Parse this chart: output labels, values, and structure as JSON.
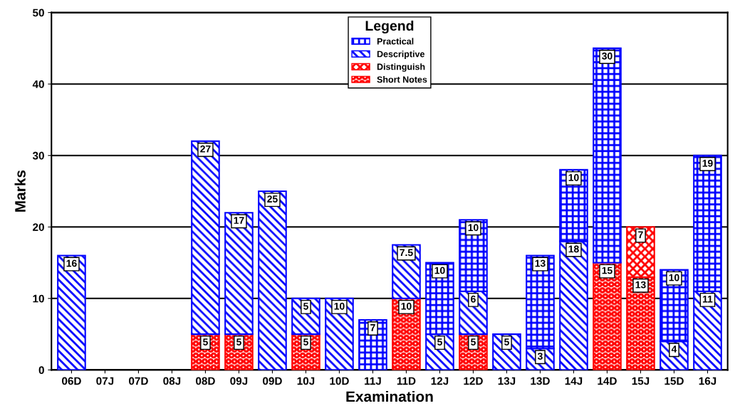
{
  "chart_data": {
    "type": "bar",
    "stacked": true,
    "xlabel": "Examination",
    "ylabel": "Marks",
    "legend_title": "Legend",
    "legend": "top",
    "grid": "y",
    "data_labels": true,
    "categories": [
      "06D",
      "07J",
      "07D",
      "08J",
      "08D",
      "09J",
      "09D",
      "10J",
      "10D",
      "11J",
      "11D",
      "12J",
      "12D",
      "13J",
      "13D",
      "14J",
      "14D",
      "15J",
      "15D",
      "16J"
    ],
    "ylim": [
      0,
      50
    ],
    "yticks": [
      0,
      10,
      20,
      30,
      40,
      50
    ],
    "series": [
      {
        "name": "Short Notes",
        "color": "#ff0000",
        "values": [
          null,
          null,
          null,
          null,
          5,
          5,
          null,
          5,
          null,
          null,
          10,
          null,
          5,
          null,
          null,
          null,
          15,
          13,
          null,
          null
        ]
      },
      {
        "name": "Distinguish",
        "color": "#ff0000",
        "values": [
          null,
          null,
          null,
          null,
          null,
          null,
          null,
          null,
          null,
          null,
          null,
          null,
          null,
          null,
          null,
          null,
          null,
          7,
          null,
          null
        ]
      },
      {
        "name": "Descriptive",
        "color": "#0000ff",
        "values": [
          16,
          null,
          null,
          null,
          27,
          17,
          25,
          5,
          10,
          null,
          7.5,
          5,
          6,
          5,
          3,
          18,
          null,
          null,
          4,
          11
        ]
      },
      {
        "name": "Practical",
        "color": "#0000ff",
        "values": [
          null,
          null,
          null,
          null,
          null,
          null,
          null,
          null,
          null,
          7,
          null,
          10,
          10,
          null,
          13,
          10,
          30,
          null,
          10,
          19
        ]
      }
    ]
  }
}
